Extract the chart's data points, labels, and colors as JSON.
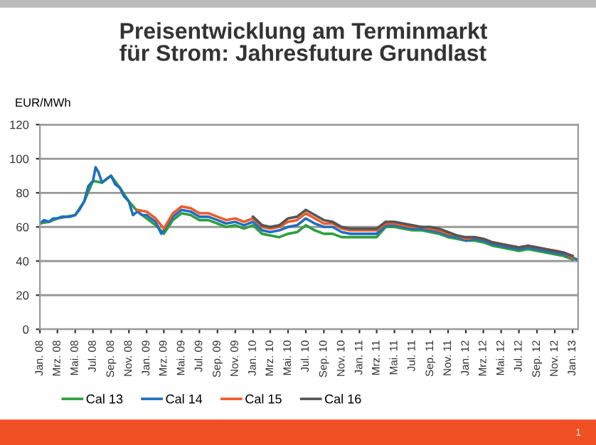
{
  "chart_data": {
    "type": "line",
    "title": "Preisentwicklung am Terminmarkt\nfür Strom: Jahresfuture Grundlast",
    "ylabel": "EUR/MWh",
    "annotations": [
      "1"
    ],
    "ylim": [
      0,
      120
    ],
    "yticks": [
      0,
      20,
      40,
      60,
      80,
      100,
      120
    ],
    "grid": "y",
    "legend": "bottom",
    "xlim": [
      "2008-01-01",
      "2013-01-20"
    ],
    "xticks": [
      {
        "value": "2008-01-01",
        "label": "Jan. 08"
      },
      {
        "value": "2008-03-01",
        "label": "Mrz. 08"
      },
      {
        "value": "2008-05-01",
        "label": "Mai. 08"
      },
      {
        "value": "2008-07-01",
        "label": "Jul. 08"
      },
      {
        "value": "2008-09-01",
        "label": "Sep. 08"
      },
      {
        "value": "2008-11-01",
        "label": "Nov. 08"
      },
      {
        "value": "2009-01-01",
        "label": "Jan. 09"
      },
      {
        "value": "2009-03-01",
        "label": "Mrz. 09"
      },
      {
        "value": "2009-05-01",
        "label": "Mai. 09"
      },
      {
        "value": "2009-07-01",
        "label": "Jul. 09"
      },
      {
        "value": "2009-09-01",
        "label": "Sep. 09"
      },
      {
        "value": "2009-11-01",
        "label": "Nov. 09"
      },
      {
        "value": "2010-01-01",
        "label": "Jan. 10"
      },
      {
        "value": "2010-03-01",
        "label": "Mrz. 10"
      },
      {
        "value": "2010-05-01",
        "label": "Mai. 10"
      },
      {
        "value": "2010-07-01",
        "label": "Jul. 10"
      },
      {
        "value": "2010-09-01",
        "label": "Sep. 10"
      },
      {
        "value": "2010-11-01",
        "label": "Nov. 10"
      },
      {
        "value": "2011-01-01",
        "label": "Jan. 11"
      },
      {
        "value": "2011-03-01",
        "label": "Mrz. 11"
      },
      {
        "value": "2011-05-01",
        "label": "Mai. 11"
      },
      {
        "value": "2011-07-01",
        "label": "Jul. 11"
      },
      {
        "value": "2011-09-01",
        "label": "Sep. 11"
      },
      {
        "value": "2011-11-01",
        "label": "Nov. 11"
      },
      {
        "value": "2012-01-01",
        "label": "Jan. 12"
      },
      {
        "value": "2012-03-01",
        "label": "Mrz. 12"
      },
      {
        "value": "2012-05-01",
        "label": "Mai. 12"
      },
      {
        "value": "2012-07-01",
        "label": "Jul. 12"
      },
      {
        "value": "2012-09-01",
        "label": "Sep. 12"
      },
      {
        "value": "2012-11-01",
        "label": "Nov. 12"
      },
      {
        "value": "2013-01-01",
        "label": "Jan. 13"
      }
    ],
    "series": [
      {
        "name": "Cal 13",
        "color": "#2e9e3e",
        "x": [
          "2008-01-01",
          "2008-02-01",
          "2008-03-01",
          "2008-04-01",
          "2008-05-01",
          "2008-06-01",
          "2008-07-01",
          "2008-08-01",
          "2008-09-01",
          "2008-10-01",
          "2008-11-01",
          "2008-12-01",
          "2009-01-01",
          "2009-02-01",
          "2009-03-01",
          "2009-04-01",
          "2009-05-01",
          "2009-06-01",
          "2009-07-01",
          "2009-08-01",
          "2009-09-01",
          "2009-10-01",
          "2009-11-01",
          "2009-12-01",
          "2010-01-01",
          "2010-02-01",
          "2010-03-01",
          "2010-04-01",
          "2010-05-01",
          "2010-06-01",
          "2010-07-01",
          "2010-08-01",
          "2010-09-01",
          "2010-10-01",
          "2010-11-01",
          "2010-12-01",
          "2011-01-01",
          "2011-02-01",
          "2011-03-01",
          "2011-04-01",
          "2011-05-01",
          "2011-06-01",
          "2011-07-01",
          "2011-08-01",
          "2011-09-01",
          "2011-10-01",
          "2011-11-01",
          "2011-12-01",
          "2012-01-01",
          "2012-02-01",
          "2012-03-01",
          "2012-04-01",
          "2012-05-01",
          "2012-06-01",
          "2012-07-01",
          "2012-08-01",
          "2012-09-01",
          "2012-10-01",
          "2012-11-01",
          "2012-12-01",
          "2013-01-01"
        ],
        "values": [
          62,
          63,
          65,
          66,
          67,
          75,
          87,
          86,
          90,
          83,
          75,
          69,
          65,
          61,
          56,
          64,
          68,
          67,
          64,
          64,
          62,
          60,
          61,
          59,
          61,
          56,
          55,
          54,
          56,
          57,
          61,
          58,
          56,
          56,
          54,
          54,
          54,
          54,
          54,
          60,
          60,
          59,
          58,
          58,
          57,
          56,
          54,
          53,
          52,
          52,
          51,
          49,
          48,
          47,
          46,
          47,
          46,
          45,
          44,
          43,
          41
        ]
      },
      {
        "name": "Cal 14",
        "color": "#1f6fc0",
        "x": [
          "2008-01-01",
          "2008-01-15",
          "2008-02-01",
          "2008-02-15",
          "2008-03-01",
          "2008-03-15",
          "2008-04-01",
          "2008-04-15",
          "2008-05-01",
          "2008-05-15",
          "2008-06-01",
          "2008-06-15",
          "2008-07-01",
          "2008-07-10",
          "2008-07-20",
          "2008-08-01",
          "2008-08-15",
          "2008-09-01",
          "2008-09-15",
          "2008-10-01",
          "2008-10-15",
          "2008-11-01",
          "2008-11-15",
          "2008-12-01",
          "2008-12-15",
          "2009-01-01",
          "2009-01-15",
          "2009-02-01",
          "2009-02-20",
          "2009-03-01",
          "2009-03-15",
          "2009-04-01",
          "2009-05-01",
          "2009-06-01",
          "2009-07-01",
          "2009-08-01",
          "2009-09-01",
          "2009-10-01",
          "2009-11-01",
          "2009-12-01",
          "2010-01-01",
          "2010-02-01",
          "2010-03-01",
          "2010-04-01",
          "2010-05-01",
          "2010-06-01",
          "2010-07-01",
          "2010-08-01",
          "2010-09-01",
          "2010-10-01",
          "2010-11-01",
          "2010-12-01",
          "2011-01-01",
          "2011-02-01",
          "2011-03-01",
          "2011-04-01",
          "2011-05-01",
          "2011-06-01",
          "2011-07-01",
          "2011-08-01",
          "2011-09-01",
          "2011-10-01",
          "2011-11-01",
          "2011-12-01",
          "2012-01-01",
          "2012-02-01",
          "2012-03-01",
          "2012-04-01",
          "2012-05-01",
          "2012-06-01",
          "2012-07-01",
          "2012-08-01",
          "2012-09-01",
          "2012-10-01",
          "2012-11-01",
          "2012-12-01",
          "2013-01-01",
          "2013-01-15"
        ],
        "values": [
          62,
          64,
          63,
          65,
          65,
          66,
          66,
          66,
          67,
          70,
          75,
          84,
          87,
          95,
          92,
          86,
          88,
          90,
          85,
          83,
          78,
          75,
          67,
          69,
          67,
          67,
          65,
          63,
          56,
          58,
          62,
          66,
          70,
          69,
          66,
          66,
          64,
          62,
          63,
          61,
          63,
          58,
          57,
          58,
          60,
          61,
          65,
          62,
          60,
          60,
          57,
          56,
          56,
          56,
          56,
          61,
          61,
          60,
          59,
          59,
          58,
          57,
          55,
          54,
          52,
          53,
          52,
          50,
          49,
          48,
          47,
          48,
          47,
          46,
          45,
          44,
          42,
          41
        ]
      },
      {
        "name": "Cal 15",
        "color": "#f05a28",
        "x": [
          "2008-12-01",
          "2009-01-01",
          "2009-02-01",
          "2009-03-01",
          "2009-04-01",
          "2009-05-01",
          "2009-06-01",
          "2009-07-01",
          "2009-08-01",
          "2009-09-01",
          "2009-10-01",
          "2009-11-01",
          "2009-12-01",
          "2010-01-01",
          "2010-02-01",
          "2010-03-01",
          "2010-04-01",
          "2010-05-01",
          "2010-06-01",
          "2010-07-01",
          "2010-08-01",
          "2010-09-01",
          "2010-10-01",
          "2010-11-01",
          "2010-12-01",
          "2011-01-01",
          "2011-02-01",
          "2011-03-01",
          "2011-04-01",
          "2011-05-01",
          "2011-06-01",
          "2011-07-01",
          "2011-08-01",
          "2011-09-01",
          "2011-10-01",
          "2011-11-01",
          "2011-12-01",
          "2012-01-01",
          "2012-02-01",
          "2012-03-01",
          "2012-04-01",
          "2012-05-01",
          "2012-06-01",
          "2012-07-01",
          "2012-08-01",
          "2012-09-01",
          "2012-10-01",
          "2012-11-01",
          "2012-12-01",
          "2013-01-01"
        ],
        "values": [
          70,
          69,
          65,
          59,
          68,
          72,
          71,
          68,
          68,
          66,
          64,
          65,
          63,
          65,
          60,
          59,
          60,
          63,
          64,
          68,
          65,
          62,
          62,
          59,
          58,
          58,
          58,
          58,
          62,
          62,
          61,
          60,
          60,
          59,
          58,
          56,
          55,
          53,
          54,
          53,
          51,
          50,
          49,
          48,
          49,
          48,
          47,
          46,
          45,
          42
        ]
      },
      {
        "name": "Cal 16",
        "color": "#555555",
        "x": [
          "2010-01-01",
          "2010-02-01",
          "2010-03-01",
          "2010-04-01",
          "2010-05-01",
          "2010-06-01",
          "2010-07-01",
          "2010-08-01",
          "2010-09-01",
          "2010-10-01",
          "2010-11-01",
          "2010-12-01",
          "2011-01-01",
          "2011-02-01",
          "2011-03-01",
          "2011-04-01",
          "2011-05-01",
          "2011-06-01",
          "2011-07-01",
          "2011-08-01",
          "2011-09-01",
          "2011-10-01",
          "2011-11-01",
          "2011-12-01",
          "2012-01-01",
          "2012-02-01",
          "2012-03-01",
          "2012-04-01",
          "2012-05-01",
          "2012-06-01",
          "2012-07-01",
          "2012-08-01",
          "2012-09-01",
          "2012-10-01",
          "2012-11-01",
          "2012-12-01",
          "2013-01-01"
        ],
        "values": [
          66,
          61,
          60,
          61,
          65,
          66,
          70,
          67,
          64,
          63,
          60,
          59,
          59,
          59,
          59,
          63,
          63,
          62,
          61,
          60,
          60,
          59,
          57,
          55,
          54,
          54,
          53,
          51,
          50,
          49,
          48,
          49,
          48,
          47,
          46,
          45,
          43
        ]
      }
    ]
  }
}
